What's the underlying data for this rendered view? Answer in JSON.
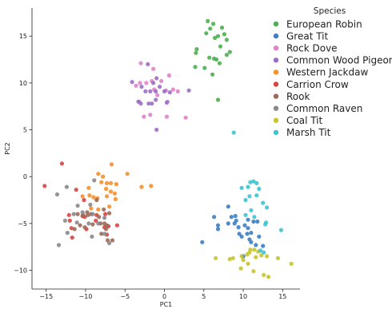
{
  "chart_data": {
    "type": "scatter",
    "xlabel": "PC1",
    "ylabel": "PC2",
    "xlim": [
      -16.8,
      17.2
    ],
    "ylim": [
      -12.0,
      18.0
    ],
    "xticks": [
      -15,
      -10,
      -5,
      0,
      5,
      10,
      15
    ],
    "yticks": [
      -10,
      -5,
      0,
      5,
      10,
      15
    ],
    "grid": false,
    "legend_title": "Species",
    "legend_position": "top-right",
    "series": [
      {
        "name": "European Robin",
        "color": "#4caf50",
        "points": [
          [
            5.5,
            16.6
          ],
          [
            6.2,
            16.3
          ],
          [
            5.8,
            15.8
          ],
          [
            7.3,
            15.9
          ],
          [
            7.6,
            15.2
          ],
          [
            6.8,
            15.0
          ],
          [
            5.3,
            15.3
          ],
          [
            6.4,
            14.8
          ],
          [
            7.9,
            14.6
          ],
          [
            7.1,
            13.9
          ],
          [
            4.1,
            13.6
          ],
          [
            4.0,
            13.2
          ],
          [
            5.7,
            12.7
          ],
          [
            6.3,
            12.6
          ],
          [
            6.6,
            12.5
          ],
          [
            7.9,
            13.0
          ],
          [
            8.3,
            13.3
          ],
          [
            7.0,
            12.1
          ],
          [
            3.9,
            11.7
          ],
          [
            5.1,
            11.6
          ],
          [
            6.1,
            10.9
          ],
          [
            6.8,
            8.2
          ]
        ]
      },
      {
        "name": "Great Tit",
        "color": "#3b7fc4",
        "points": [
          [
            8.1,
            -3.2
          ],
          [
            6.3,
            -4.3
          ],
          [
            6.8,
            -5.2
          ],
          [
            6.8,
            -5.6
          ],
          [
            8.5,
            -4.3
          ],
          [
            9.0,
            -4.2
          ],
          [
            8.9,
            -5.0
          ],
          [
            9.1,
            -4.7
          ],
          [
            9.4,
            -5.4
          ],
          [
            10.6,
            -4.6
          ],
          [
            10.2,
            -5.2
          ],
          [
            10.6,
            -5.5
          ],
          [
            11.3,
            -4.8
          ],
          [
            11.8,
            -4.8
          ],
          [
            9.5,
            -6.1
          ],
          [
            8.1,
            -5.0
          ],
          [
            9.8,
            -6.4
          ],
          [
            10.5,
            -6.1
          ],
          [
            10.8,
            -6.7
          ],
          [
            11.0,
            -7.0
          ],
          [
            11.6,
            -7.3
          ],
          [
            12.0,
            -6.4
          ],
          [
            12.5,
            -7.4
          ],
          [
            4.8,
            -7.0
          ],
          [
            10.0,
            -8.5
          ],
          [
            11.0,
            -6.0
          ]
        ]
      },
      {
        "name": "Rock Dove",
        "color": "#e083c9",
        "points": [
          [
            -3.0,
            12.1
          ],
          [
            -2.3,
            10.0
          ],
          [
            -1.6,
            10.2
          ],
          [
            -1.4,
            11.5
          ],
          [
            -0.4,
            10.2
          ],
          [
            0.6,
            10.8
          ],
          [
            0.2,
            9.2
          ],
          [
            -0.9,
            8.7
          ],
          [
            -3.6,
            9.7
          ],
          [
            -3.1,
            10.0
          ],
          [
            -1.3,
            9.3
          ],
          [
            1.1,
            9.3
          ],
          [
            1.7,
            9.1
          ],
          [
            -3.2,
            8.0
          ],
          [
            -2.6,
            6.4
          ],
          [
            -1.8,
            6.6
          ],
          [
            0.3,
            6.4
          ],
          [
            2.7,
            6.3
          ],
          [
            0.4,
            8.0
          ]
        ]
      },
      {
        "name": "Common Wood Pigeon",
        "color": "#9b6fc7",
        "points": [
          [
            -4.1,
            10.1
          ],
          [
            -2.1,
            12.0
          ],
          [
            -1.4,
            10.0
          ],
          [
            -1.0,
            10.5
          ],
          [
            -2.9,
            9.6
          ],
          [
            -2.4,
            9.1
          ],
          [
            -1.8,
            9.1
          ],
          [
            -1.1,
            9.1
          ],
          [
            0.0,
            9.1
          ],
          [
            0.7,
            9.0
          ],
          [
            -0.6,
            9.6
          ],
          [
            -3.3,
            8.0
          ],
          [
            -3.0,
            7.8
          ],
          [
            -2.0,
            7.8
          ],
          [
            -1.6,
            7.8
          ],
          [
            -1.1,
            8.2
          ],
          [
            0.3,
            7.9
          ],
          [
            3.1,
            9.2
          ],
          [
            -1.0,
            5.0
          ]
        ]
      },
      {
        "name": "Western Jackdaw",
        "color": "#f5902a",
        "points": [
          [
            -8.4,
            0.3
          ],
          [
            -7.8,
            0.0
          ],
          [
            -6.7,
            1.3
          ],
          [
            -8.0,
            -0.6
          ],
          [
            -7.3,
            -0.7
          ],
          [
            -6.8,
            -0.7
          ],
          [
            -6.1,
            -0.8
          ],
          [
            -4.7,
            0.3
          ],
          [
            -2.9,
            -1.1
          ],
          [
            -1.7,
            -1.0
          ],
          [
            -7.4,
            -1.3
          ],
          [
            -6.8,
            -1.6
          ],
          [
            -6.3,
            -1.8
          ],
          [
            -9.6,
            -1.2
          ],
          [
            -9.5,
            -2.0
          ],
          [
            -10.4,
            -2.1
          ],
          [
            -9.0,
            -2.2
          ],
          [
            -8.5,
            -2.3
          ],
          [
            -7.3,
            -2.1
          ],
          [
            -6.2,
            -2.4
          ],
          [
            -7.0,
            -3.2
          ],
          [
            -8.4,
            -3.5
          ],
          [
            -9.3,
            -3.4
          ]
        ]
      },
      {
        "name": "Carrion Crow",
        "color": "#d94545",
        "points": [
          [
            -13.0,
            1.4
          ],
          [
            -15.2,
            -1.0
          ],
          [
            -11.2,
            -1.4
          ],
          [
            -10.2,
            -2.5
          ],
          [
            -12.1,
            -4.1
          ],
          [
            -12.0,
            -4.7
          ],
          [
            -10.4,
            -4.2
          ],
          [
            -10.1,
            -4.3
          ],
          [
            -8.6,
            -4.1
          ],
          [
            -7.5,
            -4.0
          ],
          [
            -8.7,
            -4.7
          ],
          [
            -7.1,
            -5.3
          ],
          [
            -7.6,
            -5.4
          ],
          [
            -6.0,
            -5.2
          ],
          [
            -9.9,
            -5.6
          ],
          [
            -11.8,
            -5.5
          ],
          [
            -11.7,
            -6.5
          ],
          [
            -7.3,
            -6.2
          ]
        ]
      },
      {
        "name": "Rook",
        "color": "#9a6a5a",
        "points": [
          [
            -8.6,
            -2.5
          ],
          [
            -9.7,
            -4.1
          ],
          [
            -11.0,
            -4.0
          ],
          [
            -10.3,
            -4.1
          ],
          [
            -9.8,
            -3.8
          ],
          [
            -9.3,
            -4.0
          ],
          [
            -7.7,
            -3.5
          ],
          [
            -7.0,
            -3.9
          ],
          [
            -8.3,
            -4.3
          ],
          [
            -8.1,
            -5.0
          ],
          [
            -7.6,
            -5.0
          ],
          [
            -7.4,
            -5.6
          ],
          [
            -9.1,
            -5.1
          ],
          [
            -10.1,
            -5.4
          ],
          [
            -10.7,
            -5.2
          ],
          [
            -11.4,
            -5.6
          ],
          [
            -7.2,
            -6.8
          ],
          [
            -6.6,
            -6.8
          ],
          [
            -8.0,
            -6.1
          ],
          [
            -7.3,
            -5.2
          ]
        ]
      },
      {
        "name": "Common Raven",
        "color": "#8a8a8a",
        "points": [
          [
            -8.9,
            -0.4
          ],
          [
            -12.4,
            -1.1
          ],
          [
            -13.6,
            -1.9
          ],
          [
            -11.0,
            -3.1
          ],
          [
            -9.4,
            -3.0
          ],
          [
            -10.4,
            -3.8
          ],
          [
            -11.5,
            -4.0
          ],
          [
            -9.1,
            -4.0
          ],
          [
            -7.6,
            -4.4
          ],
          [
            -12.6,
            -4.7
          ],
          [
            -11.1,
            -4.9
          ],
          [
            -9.6,
            -5.0
          ],
          [
            -8.4,
            -5.0
          ],
          [
            -9.2,
            -6.4
          ],
          [
            -7.6,
            -6.1
          ],
          [
            -12.3,
            -6.0
          ],
          [
            -13.4,
            -7.3
          ],
          [
            -7.0,
            -7.1
          ]
        ]
      },
      {
        "name": "Coal Tit",
        "color": "#c6c42f",
        "points": [
          [
            6.5,
            -8.7
          ],
          [
            8.3,
            -8.8
          ],
          [
            8.7,
            -8.7
          ],
          [
            9.8,
            -8.5
          ],
          [
            10.5,
            -8.3
          ],
          [
            10.8,
            -8.1
          ],
          [
            10.9,
            -7.8
          ],
          [
            11.4,
            -7.8
          ],
          [
            11.9,
            -8.0
          ],
          [
            11.6,
            -8.6
          ],
          [
            12.3,
            -8.4
          ],
          [
            13.0,
            -8.5
          ],
          [
            10.0,
            -8.9
          ],
          [
            10.6,
            -9.3
          ],
          [
            9.7,
            -9.8
          ],
          [
            11.3,
            -10.1
          ],
          [
            12.6,
            -10.5
          ],
          [
            14.4,
            -8.7
          ],
          [
            16.1,
            -9.3
          ],
          [
            13.2,
            -10.7
          ]
        ]
      },
      {
        "name": "Marsh Tit",
        "color": "#3ec3d1",
        "points": [
          [
            8.8,
            4.7
          ],
          [
            10.9,
            -0.6
          ],
          [
            11.3,
            -0.5
          ],
          [
            11.7,
            -0.7
          ],
          [
            10.6,
            -1.1
          ],
          [
            9.8,
            -1.2
          ],
          [
            12.0,
            -1.3
          ],
          [
            11.7,
            -2.0
          ],
          [
            10.8,
            -2.1
          ],
          [
            10.3,
            -2.5
          ],
          [
            12.5,
            -2.8
          ],
          [
            13.0,
            -3.3
          ],
          [
            11.0,
            -3.6
          ],
          [
            11.4,
            -4.3
          ],
          [
            10.3,
            -4.1
          ],
          [
            12.9,
            -4.9
          ],
          [
            12.8,
            -5.1
          ],
          [
            14.8,
            -5.7
          ],
          [
            12.2,
            -7.9
          ],
          [
            12.6,
            -8.1
          ]
        ]
      }
    ]
  }
}
